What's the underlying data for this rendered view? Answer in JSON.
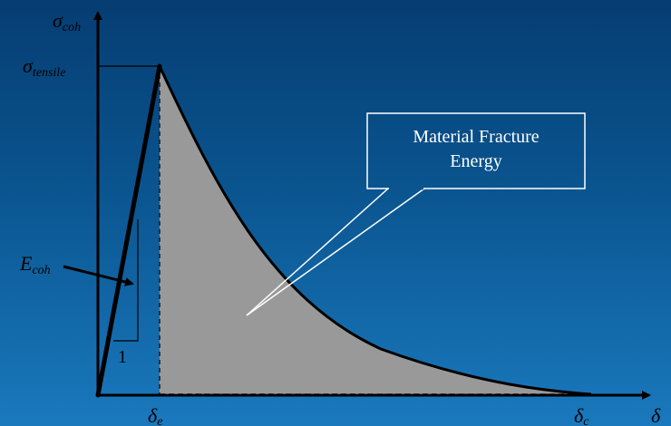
{
  "labels": {
    "y_axis": {
      "main": "σ",
      "sub": "coh"
    },
    "x_axis": {
      "main": "δ"
    },
    "peak_stress": {
      "main": "σ",
      "sub": "tensile"
    },
    "stiffness": {
      "main": "E",
      "sub": "coh"
    },
    "slope_unit": "1",
    "elastic_opening": {
      "main": "δ",
      "sub": "e"
    },
    "critical_opening": {
      "main": "δ",
      "sub": "c"
    }
  },
  "callout": {
    "line1": "Material Fracture",
    "line2": "Energy"
  },
  "colors": {
    "background_top": "#063d72",
    "background_bottom": "#1a79bd",
    "area_fill": "#999999",
    "curve": "#000000",
    "axes": "#000000",
    "callout_stroke": "#ffffff",
    "callout_text": "#ffffff"
  }
}
